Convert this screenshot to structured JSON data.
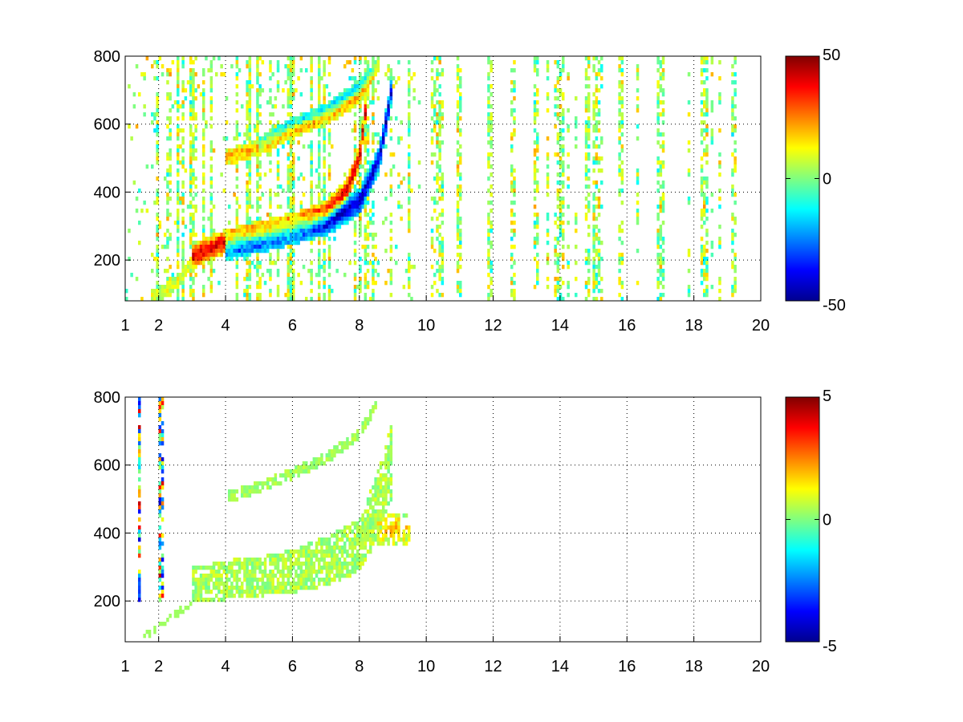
{
  "chart_data": [
    {
      "type": "heatmap",
      "title": "",
      "xlabel": "",
      "ylabel": "",
      "xlim": [
        1,
        20
      ],
      "ylim": [
        80,
        800
      ],
      "xticks": [
        1,
        2,
        4,
        6,
        8,
        10,
        12,
        14,
        16,
        18,
        20
      ],
      "yticks": [
        200,
        400,
        600,
        800
      ],
      "grid": true,
      "colormap": "jet",
      "clim": [
        -50,
        50
      ],
      "colorbar_ticks": [
        -50,
        0,
        50
      ],
      "features": {
        "upper_ridge_positive": {
          "x": [
            3.0,
            4.0,
            5.0,
            6.0,
            7.0,
            7.6,
            8.0,
            8.2
          ],
          "y": [
            210,
            255,
            280,
            300,
            340,
            400,
            500,
            650
          ],
          "value": 40
        },
        "upper_ridge_negative": {
          "x": [
            4.0,
            5.0,
            6.0,
            7.0,
            8.0,
            8.6,
            9.0
          ],
          "y": [
            240,
            260,
            285,
            310,
            370,
            500,
            720
          ],
          "value": -42
        },
        "second_branch": {
          "x": [
            4.0,
            5.0,
            6.0,
            7.0,
            8.0,
            8.6
          ],
          "y": [
            500,
            530,
            580,
            620,
            680,
            780
          ],
          "value": 20
        },
        "second_branch_negative": {
          "x": [
            5.0,
            6.0,
            7.0,
            8.0,
            8.6
          ],
          "y": [
            540,
            600,
            640,
            710,
            780
          ],
          "value": -15
        },
        "low_branch": {
          "x": [
            1.8,
            2.2,
            2.7,
            3.0
          ],
          "y": [
            90,
            110,
            150,
            200
          ],
          "value": 10
        },
        "noise_columns_x": [
          10.4,
          11.0,
          11.9,
          12.6,
          13.3,
          14.0,
          14.8,
          15.1,
          15.8,
          17.0,
          18.3,
          19.2
        ]
      }
    },
    {
      "type": "heatmap",
      "title": "",
      "xlabel": "",
      "ylabel": "",
      "xlim": [
        1,
        20
      ],
      "ylim": [
        80,
        800
      ],
      "xticks": [
        1,
        2,
        4,
        6,
        8,
        10,
        12,
        14,
        16,
        18,
        20
      ],
      "yticks": [
        200,
        400,
        600,
        800
      ],
      "grid": true,
      "colormap": "jet",
      "clim": [
        -5,
        5
      ],
      "colorbar_ticks": [
        -5,
        0,
        5
      ],
      "features": {
        "lower_band_top": {
          "x": [
            3.0,
            4.0,
            5.0,
            6.0,
            7.0,
            8.0,
            8.5,
            9.0
          ],
          "y": [
            290,
            310,
            320,
            340,
            380,
            430,
            560,
            720
          ],
          "value": 0.4
        },
        "lower_band_bottom": {
          "x": [
            3.0,
            4.0,
            5.0,
            6.0,
            7.0,
            8.0,
            8.5,
            9.0
          ],
          "y": [
            200,
            210,
            220,
            230,
            250,
            290,
            380,
            520
          ],
          "value": 0.4
        },
        "second_branch": {
          "x": [
            4.0,
            5.0,
            6.0,
            7.0,
            8.0,
            8.5
          ],
          "y": [
            505,
            535,
            575,
            620,
            690,
            780
          ],
          "value": 0.3
        },
        "hot_spot": {
          "x": [
            8.6,
            9.0,
            9.3
          ],
          "y": [
            400,
            430,
            390
          ],
          "value": 2.0
        },
        "stripes_x": [
          1.4,
          2.0,
          2.1
        ]
      }
    }
  ]
}
